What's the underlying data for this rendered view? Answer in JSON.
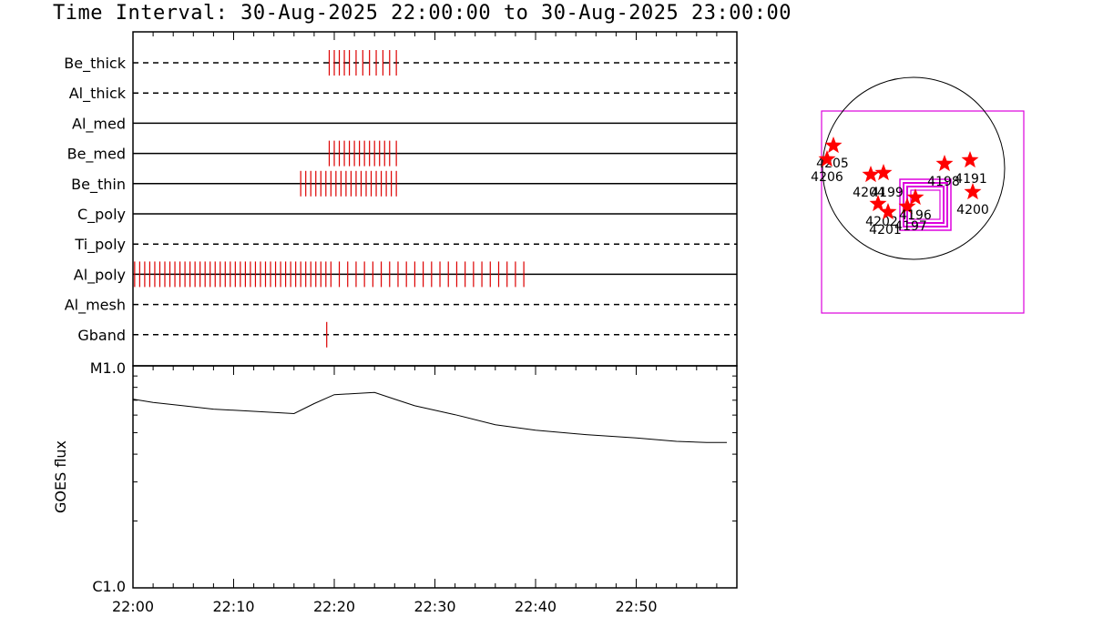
{
  "title": "Time Interval: 30-Aug-2025 22:00:00 to 30-Aug-2025 23:00:00",
  "colors": {
    "events": "#dd0000",
    "flare": "#ff0000",
    "fov": "#dd00dd",
    "axes": "#000000"
  },
  "chart_data": [
    {
      "type": "timeline",
      "xlim": [
        "22:00",
        "23:00"
      ],
      "xticks": [
        "22:00",
        "22:10",
        "22:20",
        "22:30",
        "22:40",
        "22:50"
      ],
      "channels": [
        {
          "name": "Be_thick",
          "line": "dashed",
          "events": [
            "22:19:30",
            "22:20:00",
            "22:20:30",
            "22:21:00",
            "22:21:30",
            "22:22:10",
            "22:22:50",
            "22:23:30",
            "22:24:10",
            "22:24:50",
            "22:25:30",
            "22:26:10"
          ]
        },
        {
          "name": "Al_thick",
          "line": "dashed",
          "events": []
        },
        {
          "name": "Al_med",
          "line": "solid",
          "events": []
        },
        {
          "name": "Be_med",
          "line": "solid",
          "events": [
            "22:19:30",
            "22:20:00",
            "22:20:30",
            "22:21:00",
            "22:21:30",
            "22:22:00",
            "22:22:30",
            "22:23:00",
            "22:23:30",
            "22:24:00",
            "22:24:30",
            "22:25:00",
            "22:25:30",
            "22:26:10"
          ]
        },
        {
          "name": "Be_thin",
          "line": "solid",
          "events": [
            "22:16:40",
            "22:17:10",
            "22:17:40",
            "22:18:10",
            "22:18:40",
            "22:19:10",
            "22:19:40",
            "22:20:10",
            "22:20:40",
            "22:21:10",
            "22:21:40",
            "22:22:10",
            "22:22:40",
            "22:23:10",
            "22:23:40",
            "22:24:10",
            "22:24:40",
            "22:25:10",
            "22:25:40",
            "22:26:10"
          ]
        },
        {
          "name": "C_poly",
          "line": "solid",
          "events": []
        },
        {
          "name": "Ti_poly",
          "line": "dashed",
          "events": []
        },
        {
          "name": "Al_poly",
          "line": "solid",
          "events": [
            "22:00:10",
            "22:00:40",
            "22:01:10",
            "22:01:40",
            "22:02:10",
            "22:02:40",
            "22:03:10",
            "22:03:40",
            "22:04:10",
            "22:04:40",
            "22:05:10",
            "22:05:40",
            "22:06:10",
            "22:06:40",
            "22:07:10",
            "22:07:40",
            "22:08:10",
            "22:08:40",
            "22:09:10",
            "22:09:40",
            "22:10:10",
            "22:10:40",
            "22:11:10",
            "22:11:40",
            "22:12:10",
            "22:12:40",
            "22:13:10",
            "22:13:40",
            "22:14:10",
            "22:14:40",
            "22:15:10",
            "22:15:40",
            "22:16:10",
            "22:16:40",
            "22:17:10",
            "22:17:40",
            "22:18:10",
            "22:18:40",
            "22:19:10",
            "22:19:40",
            "22:20:30",
            "22:21:20",
            "22:22:10",
            "22:23:00",
            "22:23:50",
            "22:24:40",
            "22:25:30",
            "22:26:20",
            "22:27:10",
            "22:28:00",
            "22:28:50",
            "22:29:40",
            "22:30:30",
            "22:31:20",
            "22:32:10",
            "22:33:00",
            "22:33:50",
            "22:34:40",
            "22:35:30",
            "22:36:20",
            "22:37:10",
            "22:38:00",
            "22:38:50"
          ]
        },
        {
          "name": "Al_mesh",
          "line": "dashed",
          "events": []
        },
        {
          "name": "Gband",
          "line": "dashed",
          "events": [
            "22:19:15"
          ]
        }
      ]
    },
    {
      "type": "line",
      "ylabel": "GOES flux",
      "ytick_labels": [
        "M1.0",
        "C1.0"
      ],
      "ylim_exponent": [
        -6,
        -5
      ],
      "x": [
        "22:00",
        "22:02",
        "22:05",
        "22:08",
        "22:12",
        "22:16",
        "22:18",
        "22:20",
        "22:22",
        "22:24",
        "22:26",
        "22:28",
        "22:32",
        "22:36",
        "22:40",
        "22:45",
        "22:50",
        "22:54",
        "22:57",
        "22:59"
      ],
      "log10_flux": [
        -5.15,
        -5.165,
        -5.18,
        -5.195,
        -5.205,
        -5.215,
        -5.17,
        -5.13,
        -5.125,
        -5.12,
        -5.15,
        -5.18,
        -5.22,
        -5.265,
        -5.29,
        -5.31,
        -5.325,
        -5.34,
        -5.345,
        -5.345
      ]
    },
    {
      "type": "scatter",
      "name": "solar-disk-map",
      "stars": [
        {
          "label": "4205"
        },
        {
          "label": "4206"
        },
        {
          "label": "4204"
        },
        {
          "label": "4199"
        },
        {
          "label": "4198"
        },
        {
          "label": "4191"
        },
        {
          "label": "4200"
        },
        {
          "label": "4202"
        },
        {
          "label": "4201"
        },
        {
          "label": "4197"
        },
        {
          "label": "4196"
        }
      ]
    }
  ]
}
